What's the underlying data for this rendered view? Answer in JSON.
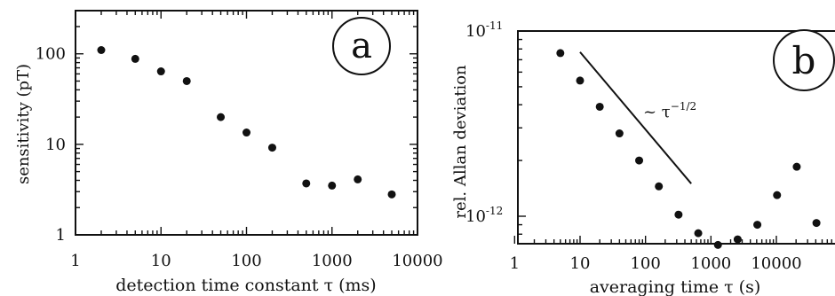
{
  "chart_data": [
    {
      "type": "scatter",
      "panel_label": "a",
      "xlabel": "detection time constant τ (ms)",
      "ylabel": "sensitivity (pT)",
      "xscale": "log",
      "yscale": "log",
      "xlim": [
        1,
        10000
      ],
      "ylim": [
        1,
        300
      ],
      "xtick_labels": [
        "1",
        "10",
        "100",
        "1000",
        "10000"
      ],
      "ytick_labels": [
        "1",
        "10",
        "100"
      ],
      "x": [
        2,
        5,
        10,
        20,
        50,
        100,
        200,
        500,
        1000,
        2000,
        5000
      ],
      "y": [
        110,
        88,
        64,
        50,
        20,
        13.5,
        9.2,
        3.7,
        3.5,
        4.1,
        2.8
      ]
    },
    {
      "type": "scatter",
      "panel_label": "b",
      "xlabel": "averaging time τ (s)",
      "ylabel": "rel. Allan deviation",
      "xscale": "log",
      "yscale": "log",
      "xlim": [
        1,
        90000
      ],
      "ylim": [
        5.5e-13,
        1e-11
      ],
      "xtick_labels": [
        "1",
        "10",
        "100",
        "1000",
        "10000"
      ],
      "ytick_labels": [
        "10",
        "10"
      ],
      "ytick_exponents": [
        "-11",
        "-12"
      ],
      "x": [
        5,
        10,
        20,
        40,
        80,
        160,
        320,
        640,
        1280,
        2560,
        5120,
        10240,
        20480,
        40960,
        81920
      ],
      "y": [
        7.6e-12,
        5.4e-12,
        3.9e-12,
        2.8e-12,
        2e-12,
        1.45e-12,
        1.02e-12,
        8.1e-13,
        7e-13,
        7.5e-13,
        9e-13,
        1.3e-12,
        1.85e-12,
        9.2e-13,
        1.15e-12
      ],
      "annotation": {
        "prefix": "~ τ",
        "exponent": "−1/2"
      },
      "slope_line": {
        "x": [
          10,
          500
        ],
        "y": [
          7.7e-12,
          1.5e-12
        ]
      }
    }
  ]
}
